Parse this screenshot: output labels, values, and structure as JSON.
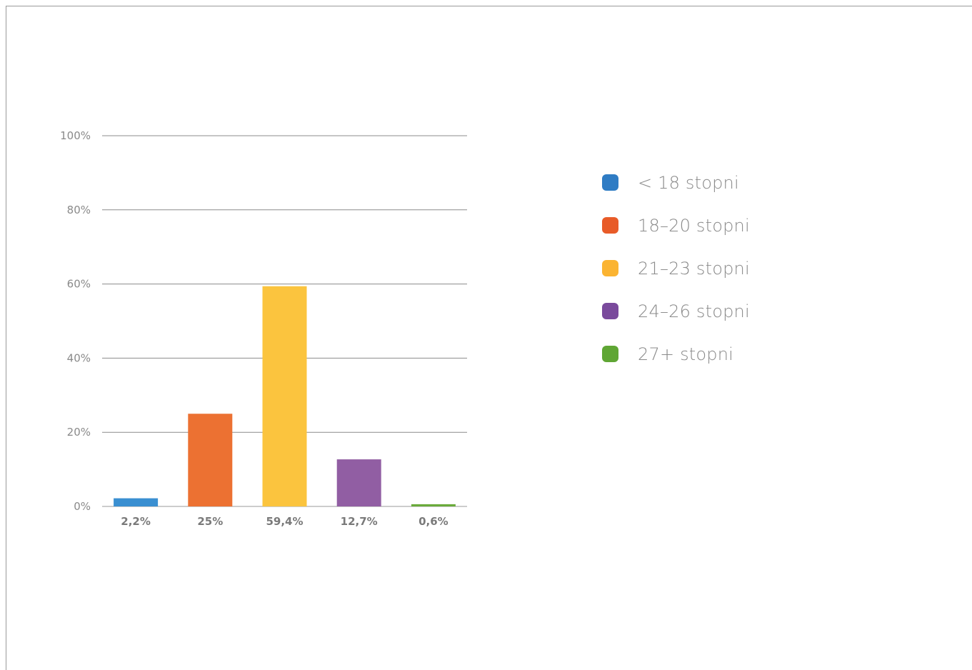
{
  "chart_data": {
    "type": "bar",
    "title": "",
    "xlabel": "",
    "ylabel": "",
    "ylim": [
      0,
      100
    ],
    "yticks": [
      "0%",
      "20%",
      "40%",
      "60%",
      "80%",
      "100%"
    ],
    "ytick_values": [
      0,
      20,
      40,
      60,
      80,
      100
    ],
    "grid": true,
    "legend_position": "right",
    "categories": [
      "< 18 stopni",
      "18–20 stopni",
      "21–23 stopni",
      "24–26 stopni",
      "27+ stopni"
    ],
    "values": [
      2.2,
      25,
      59.4,
      12.7,
      0.6
    ],
    "data_labels": [
      "2,2%",
      "25%",
      "59,4%",
      "12,7%",
      "0,6%"
    ],
    "colors": [
      "#3a8fd1",
      "#ec7132",
      "#fbc43e",
      "#915ea3",
      "#6aab3b"
    ]
  },
  "legend": {
    "items": [
      {
        "label": "< 18 stopni",
        "color": "#2f7cc4"
      },
      {
        "label": "18–20 stopni",
        "color": "#e85b28"
      },
      {
        "label": "21–23 stopni",
        "color": "#fbb432"
      },
      {
        "label": "24–26 stopni",
        "color": "#7a4a9c"
      },
      {
        "label": "27+ stopni",
        "color": "#5fa634"
      }
    ]
  }
}
